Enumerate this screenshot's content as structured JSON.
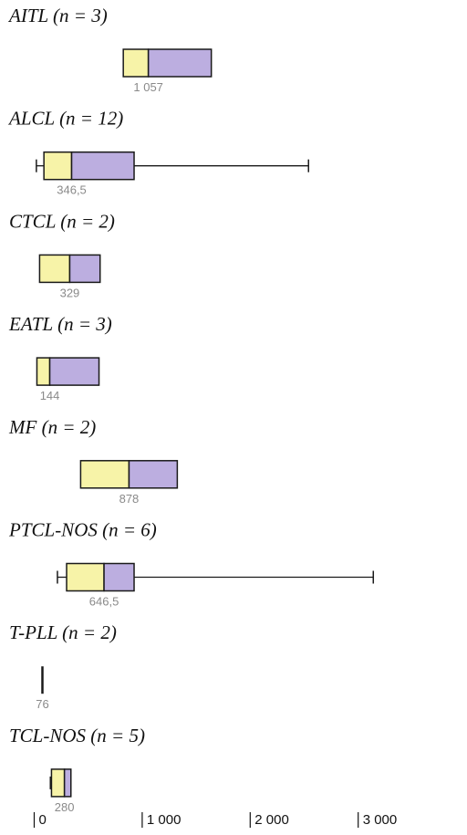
{
  "chart_data": {
    "type": "boxplot",
    "orientation": "horizontal",
    "title": "",
    "xlabel": "",
    "xlim": [
      0,
      3500
    ],
    "x_ticks": [
      {
        "value": 0,
        "label": "0"
      },
      {
        "value": 1000,
        "label": "1 000"
      },
      {
        "value": 2000,
        "label": "2 000"
      },
      {
        "value": 3000,
        "label": "3 000"
      }
    ],
    "colors": {
      "lower_box": "#f7f3a8",
      "upper_box": "#bcaee0",
      "outline": "#1a1a1a",
      "median_text": "#8a8a8a"
    },
    "groups": [
      {
        "label": "AITL (n = 3)",
        "median_label": "1 057",
        "whisker_low": null,
        "q1": 825,
        "median": 1057,
        "q3": 1640,
        "whisker_high": null
      },
      {
        "label": "ALCL (n = 12)",
        "median_label": "346,5",
        "whisker_low": 20,
        "q1": 90,
        "median": 346.5,
        "q3": 925,
        "whisker_high": 2540
      },
      {
        "label": "CTCL (n = 2)",
        "median_label": "329",
        "whisker_low": null,
        "q1": 50,
        "median": 329,
        "q3": 610,
        "whisker_high": null
      },
      {
        "label": "EATL (n = 3)",
        "median_label": "144",
        "whisker_low": null,
        "q1": 25,
        "median": 144,
        "q3": 600,
        "whisker_high": null
      },
      {
        "label": "MF (n = 2)",
        "median_label": "878",
        "whisker_low": null,
        "q1": 430,
        "median": 878,
        "q3": 1325,
        "whisker_high": null
      },
      {
        "label": "PTCL-NOS (n = 6)",
        "median_label": "646,5",
        "whisker_low": 215,
        "q1": 300,
        "median": 646.5,
        "q3": 925,
        "whisker_high": 3140
      },
      {
        "label": "T-PLL (n = 2)",
        "median_label": "76",
        "whisker_low": null,
        "q1": 76,
        "median": 76,
        "q3": 76,
        "whisker_high": null
      },
      {
        "label": "TCL-NOS (n = 5)",
        "median_label": "280",
        "whisker_low": 150,
        "q1": 160,
        "median": 280,
        "q3": 340,
        "whisker_high": 340
      }
    ]
  }
}
